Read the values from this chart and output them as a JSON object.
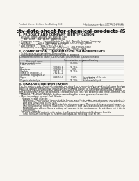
{
  "bg_color": "#f0ede8",
  "page_bg": "#f7f5f0",
  "header_left": "Product Name: Lithium Ion Battery Cell",
  "header_right_line1": "Substance number: BFP182R-00610",
  "header_right_line2": "Established / Revision: Dec.7.2010",
  "main_title": "Safety data sheet for chemical products (SDS)",
  "s1_title": "1. PRODUCT AND COMPANY IDENTIFICATION",
  "s1_lines": [
    "· Product name: Lithium Ion Battery Cell",
    "· Product code: Cylindrical-type cell",
    "     INR18650J, INR18650L, INR18650A",
    "· Company name:    Sanyo Electric Co., Ltd., Mobile Energy Company",
    "· Address:         2001  Kamitakara, Sumoto City, Hyogo, Japan",
    "· Telephone number:  +81-(799)-20-4111",
    "· Fax number:      +81-(799)-26-4123",
    "· Emergency telephone number (daytime): +81-799-26-3862",
    "                            (Night and holiday): +81-799-26-4124"
  ],
  "s2_title": "2. COMPOSITION / INFORMATION ON INGREDIENTS",
  "s2_sub": "· Substance or preparation: Preparation",
  "s2_tbl_hdr": "· Information about the chemical nature of product:",
  "tbl_h1": "Component/chemical name",
  "tbl_h2": "CAS number",
  "tbl_h3": "Concentration /\nConcentration range",
  "tbl_h4": "Classification and\nhazard labeling",
  "tbl_sub": "Chemical name",
  "tbl_rows": [
    [
      "Lithium cobalt oxide\n(LiMn/CoO2(Li))",
      "-",
      "30-60%",
      "-"
    ],
    [
      "Iron",
      "7439-89-6",
      "15-25%",
      "-"
    ],
    [
      "Aluminum",
      "7429-90-5",
      "2-5%",
      "-"
    ],
    [
      "Graphite\n(Metal in graphite-1)\n(All Metal in graphite-1)",
      "7782-42-5\n7782-44-2",
      "10-25%",
      "-"
    ],
    [
      "Copper",
      "7440-50-8",
      "5-10%",
      "Sensitization of the skin\ngroup R43.2"
    ],
    [
      "Organic electrolyte",
      "-",
      "10-20%",
      "Inflammable liquid"
    ]
  ],
  "s3_title": "3. HAZARDS IDENTIFICATION",
  "s3_lines": [
    "For the battery cell, chemical materials are stored in a hermetically-sealed metal case, designed to withstand",
    "temperatures and pressure-accumulation during normal use, as a result, during normal use, there is no",
    "physical danger of ignition or explosion and therefor danger of hazardous materials leakage.",
    "  However, if exposed to a fire, added mechanical shocks, decomposed, when electro-electro mechanical shocks,",
    "the gas release cannot be operated. The battery cell case will be breached of fire-patterns. Hazardous",
    "materials may be released.",
    "  Moreover, if heated strongly by the surrounding fire, some gas may be emitted."
  ],
  "s3_hazard": "· Most important hazard and effects:",
  "s3_human": "Human health effects:",
  "s3_human_lines": [
    "Inhalation: The release of the electrolyte has an anesthesia action and stimulates a respiratory tract.",
    "Skin contact: The release of the electrolyte stimulates a skin. The electrolyte skin contact causes a",
    "sore and stimulation on the skin.",
    "Eye contact: The release of the electrolyte stimulates eyes. The electrolyte eye contact causes a sore",
    "and stimulation on the eye. Especially, a substance that causes a strong inflammation of the eye is",
    "contained.",
    "Environmental effects: Since a battery cell remains in the environment, do not throw out it into the",
    "environment."
  ],
  "s3_specific": "· Specific hazards:",
  "s3_specific_lines": [
    "If the electrolyte contacts with water, it will generate detrimental hydrogen fluoride.",
    "Since the used electrolyte is inflammable liquid, do not bring close to fire."
  ]
}
